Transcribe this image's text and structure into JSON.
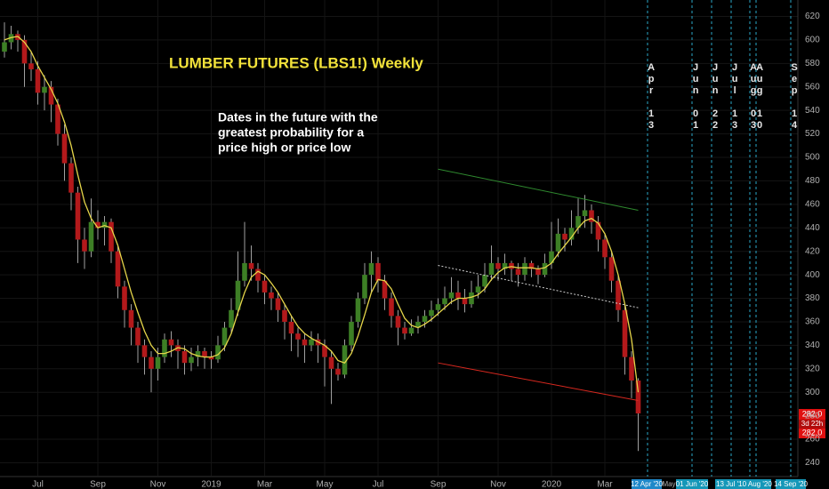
{
  "chart_data": {
    "type": "candlestick",
    "title": "LUMBER FUTURES (LBS1!) Weekly",
    "annotation": [
      "Dates in the future with the",
      "greatest probability for a",
      "price high or price low"
    ],
    "ylim": [
      229,
      634
    ],
    "yticks": [
      240,
      260,
      280,
      300,
      320,
      340,
      360,
      380,
      400,
      420,
      440,
      460,
      480,
      500,
      520,
      540,
      560,
      580,
      600,
      620
    ],
    "grid": true,
    "up_color": "#3d7f25",
    "down_color": "#b3191b",
    "wick_color": "#a0a0a0",
    "categories": [
      null,
      null,
      null,
      null,
      null,
      "Jul",
      null,
      null,
      null,
      null,
      null,
      null,
      null,
      null,
      "Sep",
      null,
      null,
      null,
      null,
      null,
      null,
      null,
      null,
      "Nov",
      null,
      null,
      null,
      null,
      null,
      null,
      null,
      "2019",
      null,
      null,
      null,
      null,
      null,
      null,
      null,
      "Mar",
      null,
      null,
      null,
      null,
      null,
      null,
      null,
      null,
      "May",
      null,
      null,
      null,
      null,
      null,
      null,
      null,
      "Jul",
      null,
      null,
      null,
      null,
      null,
      null,
      null,
      null,
      "Sep",
      null,
      null,
      null,
      null,
      null,
      null,
      null,
      null,
      "Nov",
      null,
      null,
      null,
      null,
      null,
      null,
      null,
      "2020",
      null,
      null,
      null,
      null,
      null,
      null,
      null,
      "Mar",
      null,
      null,
      null,
      null,
      null
    ],
    "candles": [
      [
        590,
        615,
        585,
        598
      ],
      [
        598,
        612,
        592,
        605
      ],
      [
        605,
        608,
        590,
        600
      ],
      [
        600,
        604,
        560,
        580
      ],
      [
        580,
        590,
        565,
        575
      ],
      [
        575,
        582,
        545,
        555
      ],
      [
        555,
        570,
        540,
        560
      ],
      [
        560,
        565,
        530,
        545
      ],
      [
        545,
        550,
        510,
        520
      ],
      [
        520,
        528,
        480,
        495
      ],
      [
        495,
        500,
        455,
        470
      ],
      [
        470,
        475,
        410,
        430
      ],
      [
        430,
        440,
        405,
        420
      ],
      [
        420,
        465,
        415,
        445
      ],
      [
        445,
        455,
        430,
        440
      ],
      [
        440,
        450,
        425,
        445
      ],
      [
        445,
        448,
        410,
        420
      ],
      [
        420,
        425,
        380,
        390
      ],
      [
        390,
        395,
        355,
        370
      ],
      [
        370,
        375,
        340,
        355
      ],
      [
        355,
        360,
        325,
        340
      ],
      [
        340,
        345,
        315,
        330
      ],
      [
        330,
        335,
        300,
        320
      ],
      [
        320,
        338,
        310,
        330
      ],
      [
        330,
        350,
        325,
        345
      ],
      [
        345,
        352,
        330,
        340
      ],
      [
        340,
        345,
        320,
        335
      ],
      [
        335,
        340,
        315,
        325
      ],
      [
        325,
        338,
        318,
        330
      ],
      [
        330,
        340,
        322,
        335
      ],
      [
        335,
        338,
        320,
        330
      ],
      [
        330,
        335,
        320,
        328
      ],
      [
        328,
        348,
        325,
        340
      ],
      [
        340,
        360,
        335,
        355
      ],
      [
        355,
        380,
        350,
        370
      ],
      [
        370,
        420,
        365,
        395
      ],
      [
        395,
        445,
        390,
        410
      ],
      [
        410,
        425,
        395,
        405
      ],
      [
        405,
        410,
        385,
        395
      ],
      [
        395,
        400,
        375,
        385
      ],
      [
        385,
        390,
        370,
        380
      ],
      [
        380,
        385,
        360,
        370
      ],
      [
        370,
        375,
        345,
        360
      ],
      [
        360,
        365,
        335,
        350
      ],
      [
        350,
        355,
        330,
        345
      ],
      [
        345,
        350,
        325,
        340
      ],
      [
        340,
        352,
        335,
        345
      ],
      [
        345,
        350,
        325,
        340
      ],
      [
        340,
        345,
        305,
        330
      ],
      [
        330,
        335,
        290,
        320
      ],
      [
        320,
        325,
        310,
        315
      ],
      [
        315,
        345,
        312,
        340
      ],
      [
        340,
        365,
        335,
        360
      ],
      [
        360,
        385,
        355,
        380
      ],
      [
        380,
        410,
        375,
        400
      ],
      [
        400,
        420,
        385,
        410
      ],
      [
        410,
        415,
        385,
        395
      ],
      [
        395,
        400,
        370,
        380
      ],
      [
        380,
        385,
        355,
        365
      ],
      [
        365,
        370,
        340,
        355
      ],
      [
        355,
        360,
        345,
        350
      ],
      [
        350,
        362,
        348,
        355
      ],
      [
        355,
        365,
        350,
        360
      ],
      [
        360,
        370,
        355,
        365
      ],
      [
        365,
        378,
        360,
        370
      ],
      [
        370,
        380,
        365,
        375
      ],
      [
        375,
        390,
        370,
        380
      ],
      [
        380,
        398,
        375,
        385
      ],
      [
        385,
        395,
        370,
        380
      ],
      [
        380,
        388,
        368,
        375
      ],
      [
        375,
        395,
        372,
        385
      ],
      [
        385,
        400,
        380,
        390
      ],
      [
        390,
        410,
        385,
        400
      ],
      [
        400,
        425,
        395,
        410
      ],
      [
        410,
        415,
        395,
        405
      ],
      [
        405,
        418,
        400,
        410
      ],
      [
        410,
        412,
        395,
        405
      ],
      [
        405,
        410,
        390,
        400
      ],
      [
        400,
        415,
        395,
        410
      ],
      [
        410,
        412,
        398,
        405
      ],
      [
        405,
        408,
        392,
        400
      ],
      [
        400,
        418,
        398,
        410
      ],
      [
        410,
        445,
        405,
        420
      ],
      [
        420,
        448,
        415,
        435
      ],
      [
        435,
        440,
        420,
        430
      ],
      [
        430,
        455,
        425,
        440
      ],
      [
        440,
        465,
        435,
        450
      ],
      [
        450,
        468,
        440,
        455
      ],
      [
        455,
        460,
        435,
        445
      ],
      [
        445,
        450,
        420,
        430
      ],
      [
        430,
        435,
        405,
        415
      ],
      [
        415,
        420,
        385,
        395
      ],
      [
        395,
        400,
        360,
        370
      ],
      [
        370,
        375,
        315,
        330
      ],
      [
        330,
        335,
        295,
        310
      ],
      [
        310,
        312,
        250,
        282
      ]
    ],
    "ma": {
      "color": "#e6d64a",
      "values": [
        600,
        602,
        603,
        598,
        590,
        578,
        568,
        558,
        546,
        530,
        510,
        485,
        462,
        448,
        440,
        442,
        440,
        425,
        405,
        385,
        368,
        352,
        340,
        333,
        333,
        335,
        338,
        337,
        333,
        331,
        330,
        330,
        332,
        338,
        350,
        368,
        385,
        398,
        403,
        400,
        393,
        385,
        375,
        365,
        356,
        350,
        346,
        343,
        340,
        335,
        327,
        325,
        333,
        348,
        366,
        385,
        396,
        395,
        388,
        375,
        363,
        357,
        355,
        358,
        362,
        367,
        372,
        377,
        380,
        380,
        381,
        383,
        388,
        396,
        402,
        406,
        407,
        406,
        406,
        406,
        405,
        406,
        410,
        418,
        425,
        432,
        440,
        446,
        448,
        444,
        435,
        420,
        400,
        375,
        345,
        300
      ]
    },
    "trendlines": [
      {
        "color": "#2f8a2f",
        "dash": false,
        "start": [
          65,
          490
        ],
        "end": [
          95,
          455
        ]
      },
      {
        "color": "#cfcfcf",
        "dash": true,
        "start": [
          65,
          408
        ],
        "end": [
          95,
          372
        ]
      },
      {
        "color": "#d8281f",
        "dash": false,
        "start": [
          65,
          325
        ],
        "end": [
          95,
          293
        ]
      }
    ],
    "future_dates": [
      "Apr 13",
      "Jun 01",
      "Jun 22",
      "Jul 13",
      "Aug 03",
      "Aug 10",
      "Sep 14"
    ],
    "future_axis_labels": [
      "12 Apr '20",
      "May",
      "01 Jun '20",
      "13 Jul '20",
      "10 Aug '20",
      "14 Sep '20"
    ],
    "last_price": "282.0",
    "countdown": "3d 22h"
  }
}
